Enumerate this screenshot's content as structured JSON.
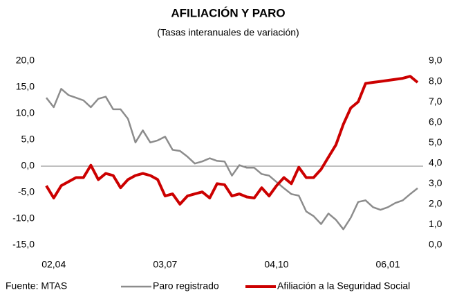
{
  "chart_data": {
    "type": "line",
    "title": "AFILIACIÓN Y PARO",
    "subtitle": "(Tasas interanuales de variación)",
    "source": "Fuente: MTAS",
    "categories": [
      null,
      "02,04",
      null,
      null,
      null,
      null,
      null,
      null,
      null,
      null,
      null,
      null,
      null,
      null,
      null,
      null,
      "03,07",
      null,
      null,
      null,
      null,
      null,
      null,
      null,
      null,
      null,
      null,
      null,
      null,
      null,
      null,
      "04,10",
      null,
      null,
      null,
      null,
      null,
      null,
      null,
      null,
      null,
      null,
      null,
      null,
      null,
      null,
      "06,01",
      null,
      null,
      null,
      null
    ],
    "ylim": [
      -15,
      20
    ],
    "yticks": [
      {
        "value": 20,
        "label": "20,0"
      },
      {
        "value": 15,
        "label": "15,0"
      },
      {
        "value": 10,
        "label": "10,0"
      },
      {
        "value": 5,
        "label": "5,0"
      },
      {
        "value": 0,
        "label": "0,0"
      },
      {
        "value": -5,
        "label": "-5,0"
      },
      {
        "value": -10,
        "label": "-10,0"
      },
      {
        "value": -15,
        "label": "-15,0"
      }
    ],
    "y2lim": [
      0,
      9
    ],
    "y2ticks": [
      {
        "value": 9,
        "label": "9,0"
      },
      {
        "value": 8,
        "label": "8,0"
      },
      {
        "value": 7,
        "label": "7,0"
      },
      {
        "value": 6,
        "label": "6,0"
      },
      {
        "value": 5,
        "label": "5,0"
      },
      {
        "value": 4,
        "label": "4,0"
      },
      {
        "value": 3,
        "label": "3,0"
      },
      {
        "value": 2,
        "label": "2,0"
      },
      {
        "value": 1,
        "label": "1,0"
      },
      {
        "value": 0,
        "label": "0,0"
      }
    ],
    "legend": "bottom",
    "series": [
      {
        "name": "Paro registrado",
        "color": "#8c8c8c",
        "width": 2.5,
        "values": [
          13.0,
          11.2,
          14.7,
          13.5,
          13.0,
          12.5,
          11.2,
          12.8,
          13.2,
          10.8,
          10.8,
          9.0,
          4.5,
          6.8,
          4.5,
          4.9,
          5.6,
          3.1,
          2.9,
          1.8,
          0.5,
          0.9,
          1.5,
          1.0,
          0.9,
          -1.8,
          0.2,
          -0.3,
          -0.3,
          -1.5,
          -1.8,
          -3.0,
          -4.2,
          -5.3,
          -5.6,
          -8.6,
          -9.5,
          -11.0,
          -9.0,
          -10.2,
          -12.0,
          -9.8,
          -6.8,
          -6.5,
          -7.8,
          -8.3,
          -7.8,
          -7.0,
          -6.5,
          -5.3,
          -4.2
        ]
      },
      {
        "name": "Afiliación a la Seguridad Social",
        "color": "#cc0000",
        "width": 4,
        "axis": "y2",
        "values": [
          2.9,
          2.3,
          2.9,
          3.1,
          3.3,
          3.3,
          3.9,
          3.2,
          3.5,
          3.4,
          2.8,
          3.2,
          3.4,
          3.5,
          3.4,
          3.2,
          2.4,
          2.5,
          2.0,
          2.4,
          2.5,
          2.6,
          2.3,
          3.0,
          2.95,
          2.4,
          2.5,
          2.35,
          2.3,
          2.8,
          2.4,
          2.9,
          3.3,
          3.0,
          3.8,
          3.3,
          3.3,
          3.7,
          4.3,
          4.9,
          5.9,
          6.7,
          7.0,
          7.9,
          7.95,
          8.0,
          8.05,
          8.1,
          8.15,
          8.25,
          7.95
        ]
      }
    ]
  }
}
